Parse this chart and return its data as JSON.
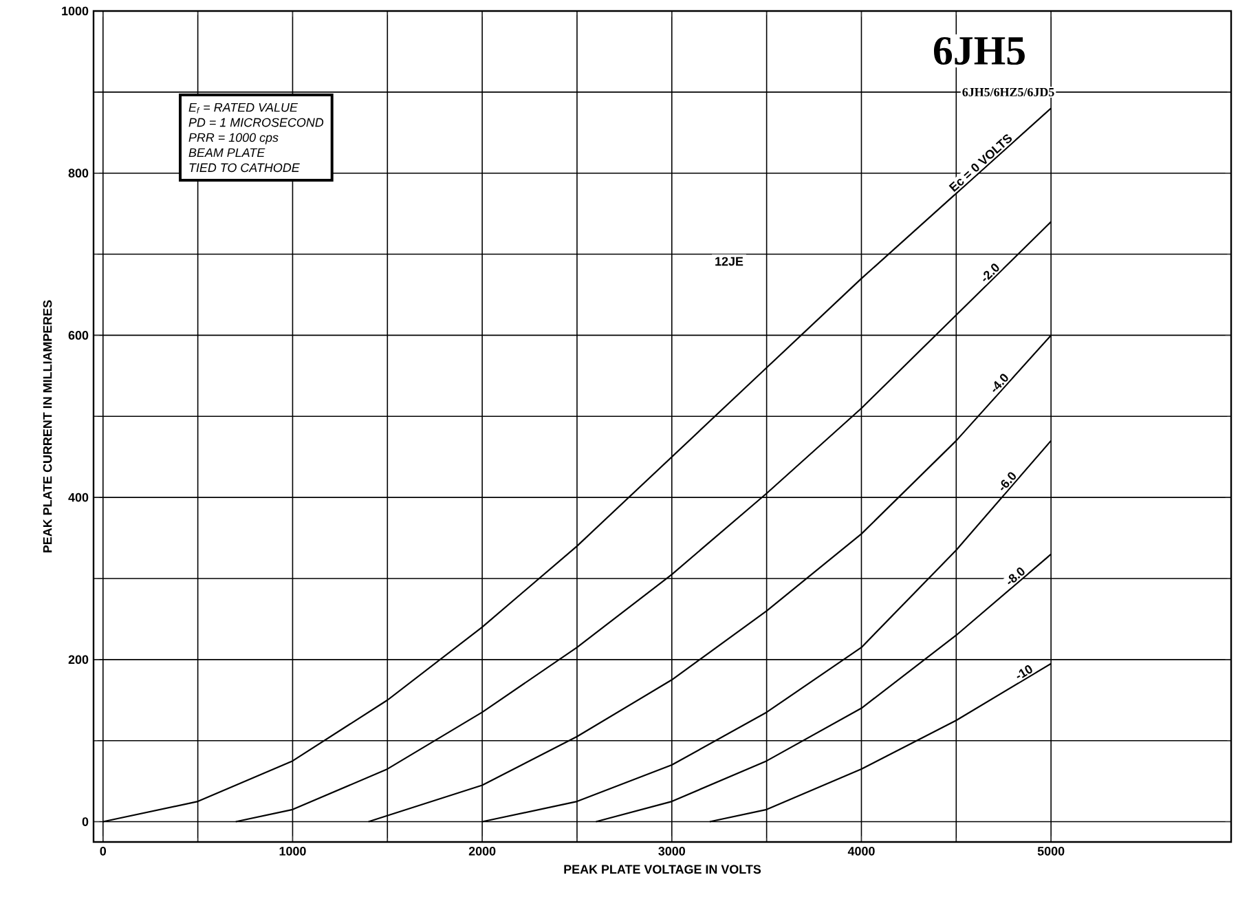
{
  "chart_data": {
    "type": "line",
    "title": "6JH5",
    "subtitle": "6JH5/6HZ5/6JD5",
    "xlabel": "PEAK PLATE VOLTAGE IN VOLTS",
    "ylabel": "PEAK PLATE CURRENT IN MILLIAMPERES",
    "xlim": [
      -50,
      5950
    ],
    "ylim": [
      -25,
      1000
    ],
    "xticks": [
      0,
      1000,
      2000,
      3000,
      4000,
      5000
    ],
    "yticks": [
      0,
      200,
      400,
      600,
      800,
      1000
    ],
    "grid": true,
    "marker": "none",
    "line_style": "solid",
    "annotations": [
      "E$_{f}$ = RATED VALUE",
      "PD = 1 MICROSECOND",
      "PRR = 1000 cps",
      "BEAM PLATE",
      "TIED TO CATHODE",
      "12JE"
    ],
    "series": [
      {
        "name": "Ec = 0 VOLTS",
        "color": "#000000",
        "x": [
          0,
          500,
          1000,
          1500,
          2000,
          2500,
          3000,
          3500,
          4000,
          4500,
          5000
        ],
        "values": [
          0,
          25,
          75,
          150,
          240,
          340,
          450,
          560,
          670,
          775,
          880
        ]
      },
      {
        "name": "-2.0",
        "color": "#000000",
        "x": [
          700,
          1000,
          1500,
          2000,
          2500,
          3000,
          3500,
          4000,
          4500,
          5000
        ],
        "values": [
          0,
          15,
          65,
          135,
          215,
          305,
          405,
          510,
          625,
          740
        ]
      },
      {
        "name": "-4.0",
        "color": "#000000",
        "x": [
          1400,
          2000,
          2500,
          3000,
          3500,
          4000,
          4500,
          5000
        ],
        "values": [
          0,
          45,
          105,
          175,
          260,
          355,
          470,
          600
        ]
      },
      {
        "name": "-6.0",
        "color": "#000000",
        "x": [
          2000,
          2500,
          3000,
          3500,
          4000,
          4500,
          5000
        ],
        "values": [
          0,
          25,
          70,
          135,
          215,
          335,
          470
        ]
      },
      {
        "name": "-8.0",
        "color": "#000000",
        "x": [
          2600,
          3000,
          3500,
          4000,
          4500,
          5000
        ],
        "values": [
          0,
          25,
          75,
          140,
          230,
          330
        ]
      },
      {
        "name": "-10",
        "color": "#000000",
        "x": [
          3200,
          3500,
          4000,
          4500,
          5000
        ],
        "values": [
          0,
          15,
          65,
          125,
          195
        ]
      }
    ]
  }
}
